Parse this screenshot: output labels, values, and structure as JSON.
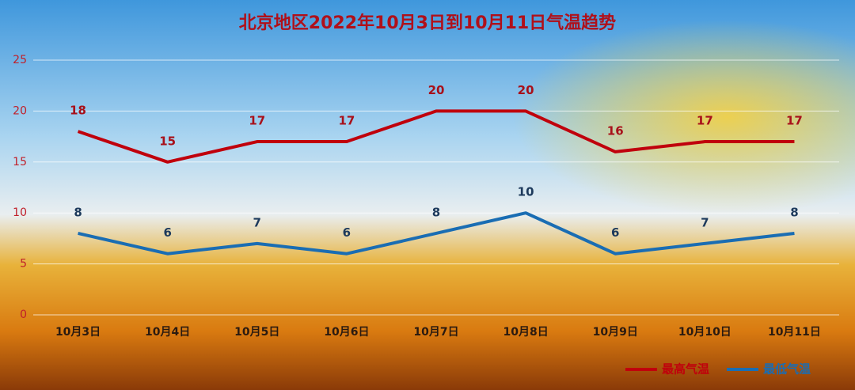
{
  "chart_data": {
    "type": "line",
    "title": "北京地区2022年10月3日到10月11日气温趋势",
    "categories": [
      "10月3日",
      "10月4日",
      "10月5日",
      "10月6日",
      "10月7日",
      "10月8日",
      "10月9日",
      "10月10日",
      "10月11日"
    ],
    "series": [
      {
        "name": "最高气温",
        "color": "#c0000c",
        "values": [
          18,
          15,
          17,
          17,
          20,
          20,
          16,
          17,
          17
        ]
      },
      {
        "name": "最低气温",
        "color": "#1a6db3",
        "values": [
          8,
          6,
          7,
          6,
          8,
          10,
          6,
          7,
          8
        ]
      }
    ],
    "ylim": [
      0,
      25
    ],
    "yticks": [
      0,
      5,
      10,
      15,
      20,
      25
    ],
    "grid": true,
    "legend": "bottom-right"
  }
}
